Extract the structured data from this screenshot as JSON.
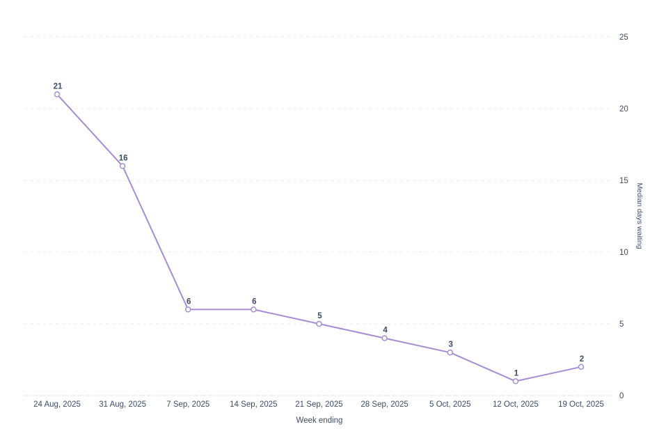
{
  "chart_data": {
    "type": "line",
    "title": "",
    "categories": [
      "24 Aug, 2025",
      "31 Aug, 2025",
      "7 Sep, 2025",
      "14 Sep, 2025",
      "21 Sep, 2025",
      "28 Sep, 2025",
      "5 Oct, 2025",
      "12 Oct, 2025",
      "19 Oct, 2025"
    ],
    "values": [
      21,
      16,
      6,
      6,
      5,
      4,
      3,
      1,
      2
    ],
    "xlabel": "Week ending",
    "ylabel": "Median days waiting",
    "ylim": [
      0,
      25
    ],
    "yticks": [
      0,
      5,
      10,
      15,
      20,
      25
    ],
    "y_axis_side": "right",
    "grid": "horizontal-dashed",
    "legend": "none",
    "colors": {
      "line": "#a78cd4",
      "marker_fill": "#ffffff",
      "marker_stroke": "#a78cd4",
      "data_label_text": "#3e4c66",
      "tick_text": "#3e4c66",
      "axis_title_text": "#3e4c66",
      "gridline": "#ebebeb",
      "axis_line": "#e5e5e5",
      "background": "#ffffff"
    }
  }
}
